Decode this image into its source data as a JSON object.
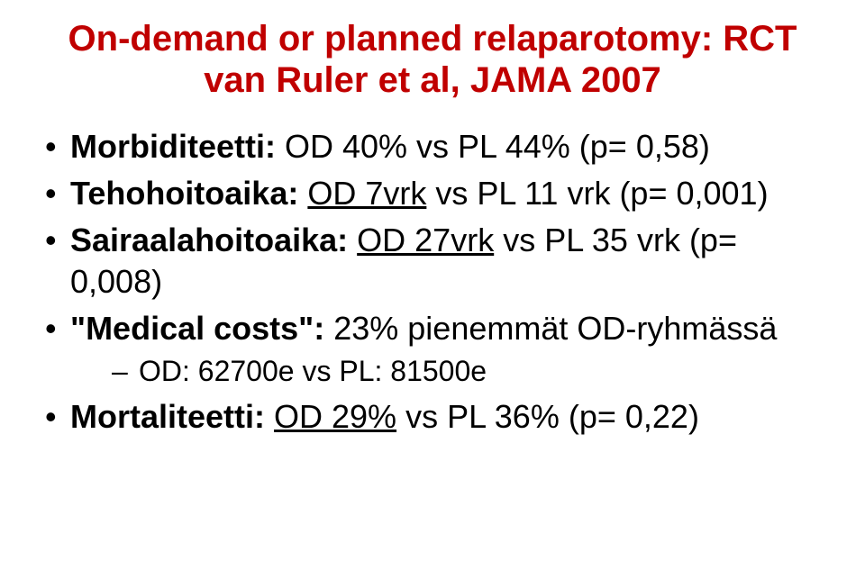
{
  "title": {
    "line1": "On-demand or planned relaparotomy: RCT",
    "line2": "van Ruler et al, JAMA 2007",
    "color": "#C00000",
    "fontsize": 40
  },
  "bullets": [
    {
      "label_bold": "Morbiditeetti:",
      "rest": " OD 40% vs PL 44% (p= 0,58)"
    },
    {
      "label_bold": "Tehohoitoaika:",
      "underlined": "OD 7vrk",
      "after_underline": " vs PL 11 vrk (p= 0,001)"
    },
    {
      "label_bold": "Sairaalahoitoaika:",
      "underlined": "OD 27vrk",
      "after_underline": " vs PL 35 vrk (p= 0,008)"
    },
    {
      "quoted_bold": "\"Medical costs\":",
      "rest": " 23% pienemmät OD-ryhmässä",
      "sub": {
        "text": "OD: 62700e  vs  PL: 81500e"
      }
    },
    {
      "label_bold": "Mortaliteetti:",
      "underlined": "OD 29%",
      "after_underline": " vs PL 36% (p= 0,22)"
    }
  ],
  "body_fontsize": 36,
  "sub_fontsize": 32,
  "text_color": "#000000",
  "background_color": "#ffffff"
}
